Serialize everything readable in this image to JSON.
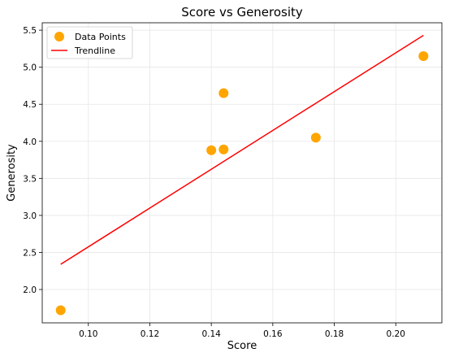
{
  "chart_data": {
    "type": "scatter",
    "title": "Score vs Generosity",
    "xlabel": "Score",
    "ylabel": "Generosity",
    "xlim": [
      0.085,
      0.215
    ],
    "ylim": [
      1.55,
      5.6
    ],
    "xticks": [
      0.1,
      0.12,
      0.14,
      0.16,
      0.18,
      0.2
    ],
    "xtick_labels": [
      "0.10",
      "0.12",
      "0.14",
      "0.16",
      "0.18",
      "0.20"
    ],
    "yticks": [
      2.0,
      2.5,
      3.0,
      3.5,
      4.0,
      4.5,
      5.0,
      5.5
    ],
    "ytick_labels": [
      "2.0",
      "2.5",
      "3.0",
      "3.5",
      "4.0",
      "4.5",
      "5.0",
      "5.5"
    ],
    "grid": true,
    "legend_placement": "top-left",
    "series": [
      {
        "name": "Data Points",
        "kind": "scatter",
        "color": "#FFA500",
        "x": [
          0.091,
          0.14,
          0.144,
          0.144,
          0.174,
          0.209
        ],
        "y": [
          1.72,
          3.88,
          3.89,
          4.65,
          4.05,
          5.15
        ]
      },
      {
        "name": "Trendline",
        "kind": "line",
        "color": "#FF0000",
        "x": [
          0.091,
          0.209
        ],
        "y": [
          2.34,
          5.43
        ]
      }
    ]
  }
}
